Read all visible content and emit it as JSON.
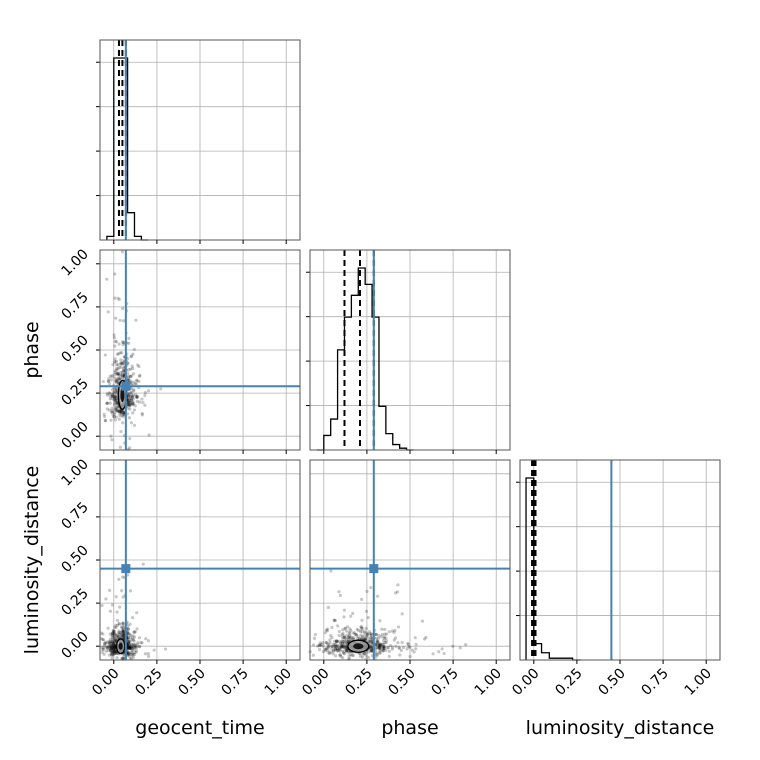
{
  "chart_data": {
    "type": "corner",
    "parameters": [
      "geocent_time",
      "phase",
      "luminosity_distance"
    ],
    "axis_range": [
      -0.08,
      1.08
    ],
    "ticks": [
      0.0,
      0.25,
      0.5,
      0.75,
      1.0
    ],
    "tick_labels": [
      "0.00",
      "0.25",
      "0.50",
      "0.75",
      "1.00"
    ],
    "truths": {
      "geocent_time": 0.07,
      "phase": 0.29,
      "luminosity_distance": 0.45
    },
    "truth_color": "#4682b4",
    "grid": true,
    "histograms": {
      "geocent_time": {
        "bin_width": 0.04,
        "bins": [
          {
            "x0": -0.04,
            "count": 2
          },
          {
            "x0": 0.0,
            "count": 100
          },
          {
            "x0": 0.04,
            "count": 100
          },
          {
            "x0": 0.08,
            "count": 15
          },
          {
            "x0": 0.12,
            "count": 2
          },
          {
            "x0": 0.16,
            "count": 0
          }
        ],
        "quantiles": [
          0.03,
          0.05,
          0.07
        ]
      },
      "phase": {
        "bin_width": 0.04,
        "bins": [
          {
            "x0": -0.04,
            "count": 0
          },
          {
            "x0": 0.0,
            "count": 8
          },
          {
            "x0": 0.04,
            "count": 17
          },
          {
            "x0": 0.08,
            "count": 55
          },
          {
            "x0": 0.12,
            "count": 73
          },
          {
            "x0": 0.16,
            "count": 85
          },
          {
            "x0": 0.2,
            "count": 100
          },
          {
            "x0": 0.24,
            "count": 91
          },
          {
            "x0": 0.28,
            "count": 73
          },
          {
            "x0": 0.32,
            "count": 24
          },
          {
            "x0": 0.36,
            "count": 9
          },
          {
            "x0": 0.4,
            "count": 3
          },
          {
            "x0": 0.44,
            "count": 1
          },
          {
            "x0": 0.48,
            "count": 0
          }
        ],
        "quantiles": [
          0.12,
          0.21,
          0.29
        ]
      },
      "luminosity_distance": {
        "bin_width": 0.045,
        "bins": [
          {
            "x0": -0.045,
            "count": 100
          },
          {
            "x0": 0.0,
            "count": 9
          },
          {
            "x0": 0.045,
            "count": 4
          },
          {
            "x0": 0.09,
            "count": 1
          },
          {
            "x0": 0.135,
            "count": 1
          },
          {
            "x0": 0.18,
            "count": 1
          },
          {
            "x0": 0.225,
            "count": 0
          }
        ],
        "quantiles": [
          -0.01,
          0.0,
          0.01
        ]
      }
    },
    "posterior_clouds": [
      {
        "x_param": "geocent_time",
        "y_param": "phase",
        "center": [
          0.05,
          0.24
        ],
        "spread": [
          0.035,
          0.12
        ],
        "n": 520
      },
      {
        "x_param": "geocent_time",
        "y_param": "luminosity_distance",
        "center": [
          0.04,
          0.0
        ],
        "spread": [
          0.04,
          0.06
        ],
        "n": 520
      },
      {
        "x_param": "phase",
        "y_param": "luminosity_distance",
        "center": [
          0.2,
          0.0
        ],
        "spread": [
          0.1,
          0.05
        ],
        "n": 600
      }
    ]
  }
}
